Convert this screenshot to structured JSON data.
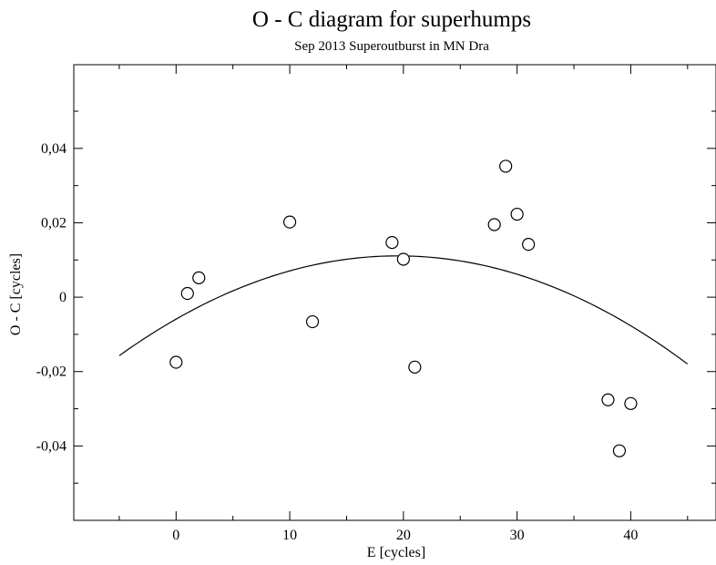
{
  "chart_data": {
    "type": "scatter",
    "title": "O - C diagram for superhumps",
    "subtitle": "Sep 2013 Superoutburst in MN Dra",
    "xlabel": "E [cycles]",
    "ylabel": "O - C [cycles]",
    "xlim": [
      -9,
      47.5
    ],
    "ylim": [
      -0.06,
      0.0625
    ],
    "x_ticks": [
      0,
      10,
      20,
      30,
      40
    ],
    "x_tick_labels": [
      "0",
      "10",
      "20",
      "30",
      "40"
    ],
    "y_ticks": [
      -0.04,
      -0.02,
      0,
      0.02,
      0.04
    ],
    "y_tick_labels": [
      "-0,04",
      "-0,02",
      "0",
      "0,02",
      "0,04"
    ],
    "grid": false,
    "series": [
      {
        "type": "scatter",
        "marker": "open-circle",
        "x": [
          0,
          1,
          2,
          10,
          12,
          19,
          20,
          21,
          28,
          29,
          30,
          31,
          38,
          39,
          40
        ],
        "y": [
          -0.0175,
          0.001,
          0.0052,
          0.0202,
          -0.0066,
          0.0147,
          0.0102,
          -0.0188,
          0.0195,
          0.0352,
          0.0223,
          0.0142,
          -0.0276,
          -0.0413,
          -0.0286
        ]
      },
      {
        "type": "line",
        "fit": "quadratic",
        "x_range": [
          -5,
          45
        ],
        "vertex": [
          19.5,
          0.0111
        ],
        "coef_a": -4.47e-05
      }
    ]
  }
}
